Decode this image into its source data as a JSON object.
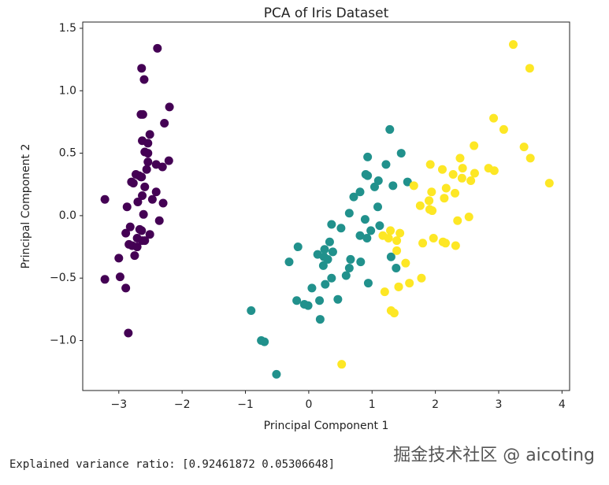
{
  "chart_data": {
    "type": "scatter",
    "title": "PCA of Iris Dataset",
    "x_label": "Principal Component 1",
    "y_label": "Principal Component 2",
    "xlim": [
      -3.57,
      4.12
    ],
    "ylim": [
      -1.4,
      1.55
    ],
    "grid": false,
    "xticks": [
      {
        "value": -3,
        "label": "−3"
      },
      {
        "value": -2,
        "label": "−2"
      },
      {
        "value": -1,
        "label": "−1"
      },
      0,
      1,
      2,
      3,
      4
    ],
    "yticks": [
      {
        "value": -1.0,
        "label": "−1.0"
      },
      {
        "value": -0.5,
        "label": "−0.5"
      },
      {
        "value": 0.0,
        "label": "0.0"
      },
      {
        "value": 0.5,
        "label": "0.5"
      },
      {
        "value": 1.0,
        "label": "1.0"
      },
      {
        "value": 1.5,
        "label": "1.5"
      }
    ],
    "series": [
      {
        "color": "#440154",
        "x": [
          -2.68,
          -2.71,
          -2.89,
          -2.75,
          -2.73,
          -2.28,
          -2.82,
          -2.63,
          -2.89,
          -2.67,
          -2.51,
          -2.61,
          -2.79,
          -3.22,
          -2.64,
          -2.39,
          -2.62,
          -2.65,
          -2.2,
          -2.59,
          -2.31,
          -2.54,
          -3.22,
          -2.3,
          -2.36,
          -2.51,
          -2.47,
          -2.56,
          -2.64,
          -2.63,
          -2.59,
          -2.41,
          -2.65,
          -2.6,
          -2.64,
          -2.87,
          -2.63,
          -2.8,
          -2.98,
          -2.59,
          -2.77,
          -2.85,
          -3.0,
          -2.41,
          -2.21,
          -2.71,
          -2.54,
          -2.84,
          -2.54,
          -2.7
        ],
        "values": [
          0.32,
          -0.18,
          -0.14,
          -0.32,
          0.33,
          0.74,
          -0.09,
          0.16,
          -0.58,
          -0.11,
          0.65,
          0.01,
          -0.24,
          -0.51,
          1.18,
          1.34,
          0.81,
          0.31,
          0.87,
          0.51,
          0.39,
          0.43,
          0.13,
          0.1,
          -0.04,
          -0.15,
          0.13,
          0.37,
          0.31,
          -0.2,
          -0.2,
          0.41,
          0.81,
          1.09,
          -0.12,
          0.07,
          0.6,
          0.27,
          -0.49,
          0.23,
          0.26,
          -0.94,
          -0.34,
          0.19,
          0.44,
          -0.25,
          0.5,
          -0.23,
          0.58,
          0.11
        ]
      },
      {
        "color": "#21918c",
        "x": [
          1.28,
          0.93,
          1.46,
          0.18,
          1.09,
          0.64,
          1.1,
          -0.75,
          1.04,
          -0.01,
          -0.51,
          0.51,
          0.26,
          0.98,
          -0.17,
          0.93,
          0.66,
          0.24,
          0.94,
          0.05,
          1.12,
          0.36,
          1.3,
          0.92,
          0.71,
          0.9,
          1.33,
          1.56,
          0.81,
          -0.31,
          -0.07,
          -0.19,
          0.14,
          1.38,
          0.59,
          0.81,
          1.22,
          0.82,
          0.25,
          0.17,
          0.46,
          0.89,
          0.23,
          -0.7,
          0.36,
          0.33,
          0.38,
          0.64,
          -0.91,
          0.3
        ],
        "values": [
          0.69,
          0.32,
          0.5,
          -0.83,
          0.07,
          -0.42,
          0.28,
          -1.0,
          0.23,
          -0.72,
          -1.27,
          -0.1,
          -0.55,
          -0.12,
          -0.25,
          0.47,
          -0.35,
          -0.33,
          -0.54,
          -0.58,
          -0.08,
          -0.07,
          -0.33,
          -0.18,
          0.15,
          0.33,
          0.24,
          0.27,
          -0.16,
          -0.37,
          -0.71,
          -0.68,
          -0.31,
          -0.42,
          -0.48,
          0.19,
          0.41,
          -0.37,
          -0.27,
          -0.68,
          -0.67,
          -0.03,
          -0.4,
          -1.01,
          -0.5,
          -0.21,
          -0.29,
          0.02,
          -0.76,
          -0.35
        ]
      },
      {
        "color": "#fde725",
        "x": [
          2.53,
          1.42,
          2.62,
          1.97,
          2.35,
          3.4,
          0.52,
          2.93,
          2.32,
          2.92,
          1.66,
          1.8,
          2.17,
          1.35,
          1.59,
          1.9,
          1.95,
          3.49,
          3.8,
          1.3,
          2.43,
          1.2,
          3.5,
          1.39,
          2.28,
          2.61,
          1.26,
          1.29,
          2.12,
          2.39,
          2.84,
          3.23,
          2.16,
          1.44,
          1.78,
          3.08,
          2.14,
          1.91,
          1.17,
          2.11,
          2.31,
          1.92,
          1.42,
          2.56,
          2.42,
          1.94,
          1.53,
          1.76,
          1.9,
          1.39
        ],
        "values": [
          -0.01,
          -0.57,
          0.34,
          -0.18,
          -0.04,
          0.55,
          -1.19,
          0.36,
          -0.24,
          0.78,
          0.24,
          -0.22,
          0.22,
          -0.78,
          -0.54,
          0.12,
          0.04,
          1.18,
          0.26,
          -0.76,
          0.38,
          -0.61,
          0.46,
          -0.2,
          0.33,
          0.56,
          -0.18,
          -0.12,
          -0.21,
          0.46,
          0.38,
          1.37,
          -0.22,
          -0.14,
          -0.5,
          0.69,
          0.14,
          0.05,
          -0.16,
          0.37,
          0.18,
          0.41,
          -0.57,
          0.28,
          0.3,
          0.19,
          -0.38,
          0.08,
          0.12,
          -0.28
        ]
      }
    ]
  },
  "output": {
    "text": "Explained variance ratio: [0.92461872 0.05306648]"
  },
  "watermark": {
    "text": "掘金技术社区 @ aicoting"
  }
}
